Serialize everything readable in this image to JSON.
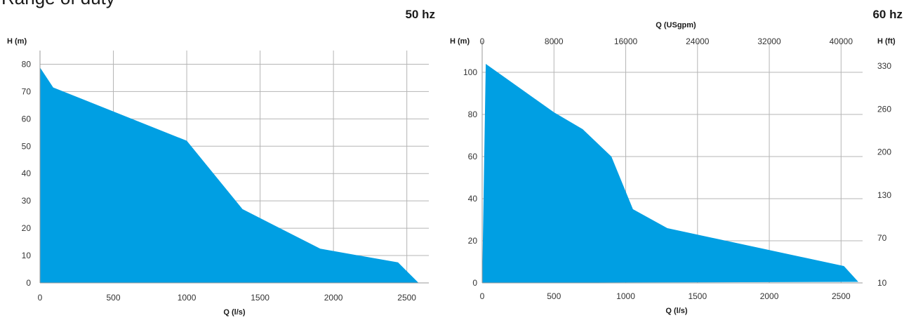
{
  "page": {
    "heading": "Range of duty"
  },
  "chart_data": [
    {
      "type": "area",
      "title": "50 hz",
      "xlabel": "Q (l/s)",
      "ylabel": "H (m)",
      "xlim": [
        0,
        2650
      ],
      "ylim": [
        0,
        85
      ],
      "x_ticks": [
        0,
        500,
        1000,
        1500,
        2000,
        2500
      ],
      "y_ticks": [
        0,
        10,
        20,
        30,
        40,
        50,
        60,
        70,
        80
      ],
      "grid": true,
      "fill_color": "#009fe3",
      "series": [
        {
          "x": [
            0,
            90,
            1000,
            1380,
            1910,
            2440,
            2580,
            0
          ],
          "y": [
            78.8,
            71.5,
            52,
            27,
            12.5,
            7.5,
            0,
            0
          ]
        }
      ]
    },
    {
      "type": "area",
      "title": "60 hz",
      "xlabel": "Q (l/s)",
      "ylabel": "H (m)",
      "x2label": "Q (USgpm)",
      "y2label": "H (ft)",
      "xlim": [
        0,
        2650
      ],
      "ylim": [
        0,
        115
      ],
      "x_ticks": [
        0,
        500,
        1000,
        1500,
        2000,
        2500
      ],
      "y_ticks": [
        0,
        20,
        40,
        60,
        80,
        100
      ],
      "x2_ticks": [
        {
          "label": "0",
          "x": 0
        },
        {
          "label": "8000",
          "x": 500
        },
        {
          "label": "16000",
          "x": 1000
        },
        {
          "label": "24000",
          "x": 1500
        },
        {
          "label": "32000",
          "x": 2000
        },
        {
          "label": "40000",
          "x": 2500
        }
      ],
      "y2_ticks": [
        {
          "label": "10",
          "y": 0
        },
        {
          "label": "70",
          "y": 21.3
        },
        {
          "label": "130",
          "y": 41.6
        },
        {
          "label": "200",
          "y": 62.2
        },
        {
          "label": "260",
          "y": 82.5
        },
        {
          "label": "330",
          "y": 103
        }
      ],
      "grid": true,
      "fill_color": "#009fe3",
      "series": [
        {
          "x": [
            25,
            500,
            700,
            900,
            1050,
            1290,
            2520,
            2620,
            0
          ],
          "y": [
            104,
            81,
            73,
            60,
            35,
            26,
            8,
            0.5,
            0
          ]
        }
      ]
    }
  ]
}
